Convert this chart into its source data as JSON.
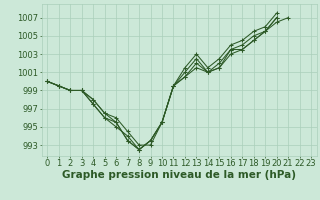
{
  "x": [
    0,
    1,
    2,
    3,
    4,
    5,
    6,
    7,
    8,
    9,
    10,
    11,
    12,
    13,
    14,
    15,
    16,
    17,
    18,
    19,
    20,
    21,
    22,
    23
  ],
  "lines": [
    [
      1000.0,
      999.5,
      999.0,
      999.0,
      998.0,
      996.5,
      995.5,
      993.5,
      992.5,
      993.5,
      995.5,
      999.5,
      1000.5,
      1002.0,
      1001.0,
      1001.5,
      1003.0,
      1003.5,
      1004.5,
      1005.5,
      1006.5,
      1007.0,
      null,
      null
    ],
    [
      1000.0,
      999.5,
      999.0,
      999.0,
      997.5,
      996.0,
      995.0,
      994.0,
      992.5,
      993.5,
      995.5,
      999.5,
      1001.0,
      1002.5,
      1001.0,
      1002.0,
      1003.5,
      1004.0,
      1005.0,
      1005.5,
      1007.0,
      null,
      null,
      null
    ],
    [
      1000.0,
      999.5,
      999.0,
      999.0,
      998.0,
      996.5,
      996.0,
      994.5,
      993.0,
      993.0,
      995.5,
      999.5,
      1001.5,
      1003.0,
      1001.5,
      1002.5,
      1004.0,
      1004.5,
      1005.5,
      1006.0,
      1007.5,
      null,
      null,
      null
    ],
    [
      1000.0,
      999.5,
      999.0,
      999.0,
      997.5,
      996.0,
      995.5,
      993.5,
      992.5,
      993.5,
      995.5,
      999.5,
      1000.5,
      1001.5,
      1001.0,
      1001.5,
      1003.5,
      1003.5,
      1004.5,
      1005.5,
      1007.0,
      null,
      null,
      null
    ]
  ],
  "bg_color": "#cce8d8",
  "line_color": "#2d5a27",
  "grid_color": "#aacfba",
  "title": "Graphe pression niveau de la mer (hPa)",
  "ylabel_vals": [
    993,
    995,
    997,
    999,
    1001,
    1003,
    1005,
    1007
  ],
  "xlim": [
    -0.5,
    23.5
  ],
  "ylim": [
    991.8,
    1008.5
  ],
  "title_color": "#2d5a27",
  "title_fontsize": 7.5,
  "tick_fontsize": 6.0
}
